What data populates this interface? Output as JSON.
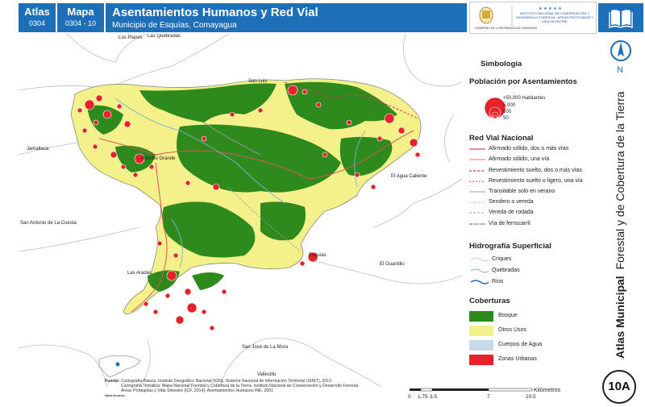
{
  "header": {
    "atlas_label": "Atlas",
    "atlas_code": "0304",
    "mapa_label": "Mapa",
    "mapa_code": "0304 - 10",
    "title": "Asentamientos Humanos y Red Vial",
    "subtitle": "Municipio de Esquías, Comayagua",
    "logo_left_text": "GOBIERNO DE LA REPÚBLICA DE HONDURAS",
    "logo_right_text": "INSTITUTO NACIONAL DE CONSERVACIÓN Y DESARROLLO FORESTAL, ÁREAS PROTEGIDAS Y VIDA SILVESTRE"
  },
  "map": {
    "places": {
      "los_planes": "Los Planes",
      "las_quebradas": "Las Quebradas",
      "san_luis": "San Luis",
      "jamalteca": "Jamalteca",
      "rancho_grande": "Rancho Grande",
      "el_agua_caliente": "El Agua Caliente",
      "san_antonio": "San Antonio de La Cuesta",
      "las_aradas": "Las Aradas",
      "esquias": "Esquías",
      "el_guantillo": "El Guantillo",
      "san_jose": "San José de La Mora",
      "vallecillo": "Vallecillo"
    }
  },
  "legend": {
    "title": "Simbología",
    "population_title": "Población por Asentamientos",
    "population_sizes": [
      "+50,000 Habitantes",
      "5,000",
      "500",
      "50"
    ],
    "roads_title": "Red Vial Nacional",
    "roads": [
      "Afirmado sólido, dos o más vías",
      "Afirmado sólido, una vía",
      "Revestimiento suelto, dos o más vías",
      "Revestimiento suelto o ligero, una vía",
      "Transitable solo en verano",
      "Sendero o vereda",
      "Vereda de rodada",
      "Vía de ferrocarril"
    ],
    "hydro_title": "Hidrografía Superficial",
    "hydro": [
      "Criques",
      "Quebradas",
      "Ríos"
    ],
    "cover_title": "Coberturas",
    "cover": [
      "Bosque",
      "Otros Usos",
      "Cuerpos de Agua",
      "Zonas Urbanas"
    ],
    "colors": {
      "forest": "#2f8a1e",
      "other_uses": "#f4f18a",
      "water": "#c6d9ea",
      "urban": "#e8222a",
      "accent": "#1d6fb8"
    }
  },
  "side": {
    "atlas_bold": "Atlas Municipal",
    "atlas_rest": "Forestal y de Cobertura de la Tierra",
    "north": "N",
    "page_badge": "10A"
  },
  "source": {
    "label": "Fuente:",
    "line1": "Cartografía Básica: Instituto Geográfico Nacional (IGN), Sistema Nacional de Información Territorial (SINIT), 2013",
    "line2": "Cartografía Temática: Mapa Nacional Forestal y Cobertura de la Tierra, Instituto Nacional de Conservación y Desarrollo Forestal,",
    "line3": "Áreas Protegidas y Vida Silvestre (ICF, 2014); Asentamientos Humanos INE, 2001",
    "note_label": "Nota técnica:"
  },
  "scale": {
    "ticks": [
      "0",
      "1.75",
      "3.5",
      "7",
      "10.5"
    ],
    "unit": "Kilómetros"
  }
}
